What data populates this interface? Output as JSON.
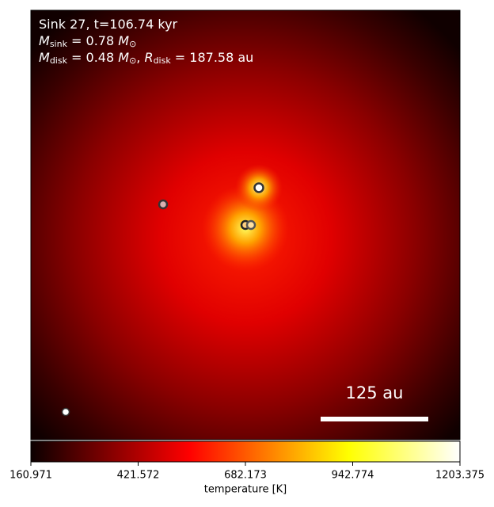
{
  "chart_data": {
    "type": "image",
    "colormap": "hot",
    "annotation_lines": [
      [
        {
          "t": "Sink 27, t=106.74 kyr"
        }
      ],
      [
        {
          "t": "M",
          "s": "italic"
        },
        {
          "t": "sink",
          "s": "sub"
        },
        {
          "t": " = 0.78 "
        },
        {
          "t": "M",
          "s": "italic"
        },
        {
          "t": "⊙",
          "s": "sub"
        }
      ],
      [
        {
          "t": "M",
          "s": "italic"
        },
        {
          "t": "disk",
          "s": "sub"
        },
        {
          "t": " = 0.48 "
        },
        {
          "t": "M",
          "s": "italic"
        },
        {
          "t": "⊙",
          "s": "sub"
        },
        {
          "t": ", "
        },
        {
          "t": "R",
          "s": "italic"
        },
        {
          "t": "disk",
          "s": "sub"
        },
        {
          "t": " = 187.58 au"
        }
      ]
    ],
    "scale_bar_label": "125 au",
    "colorbar": {
      "label": "temperature [K]",
      "lim": [
        160.971,
        1203.375
      ],
      "ticks": [
        160.971,
        421.572,
        682.173,
        942.774,
        1203.375
      ]
    }
  }
}
